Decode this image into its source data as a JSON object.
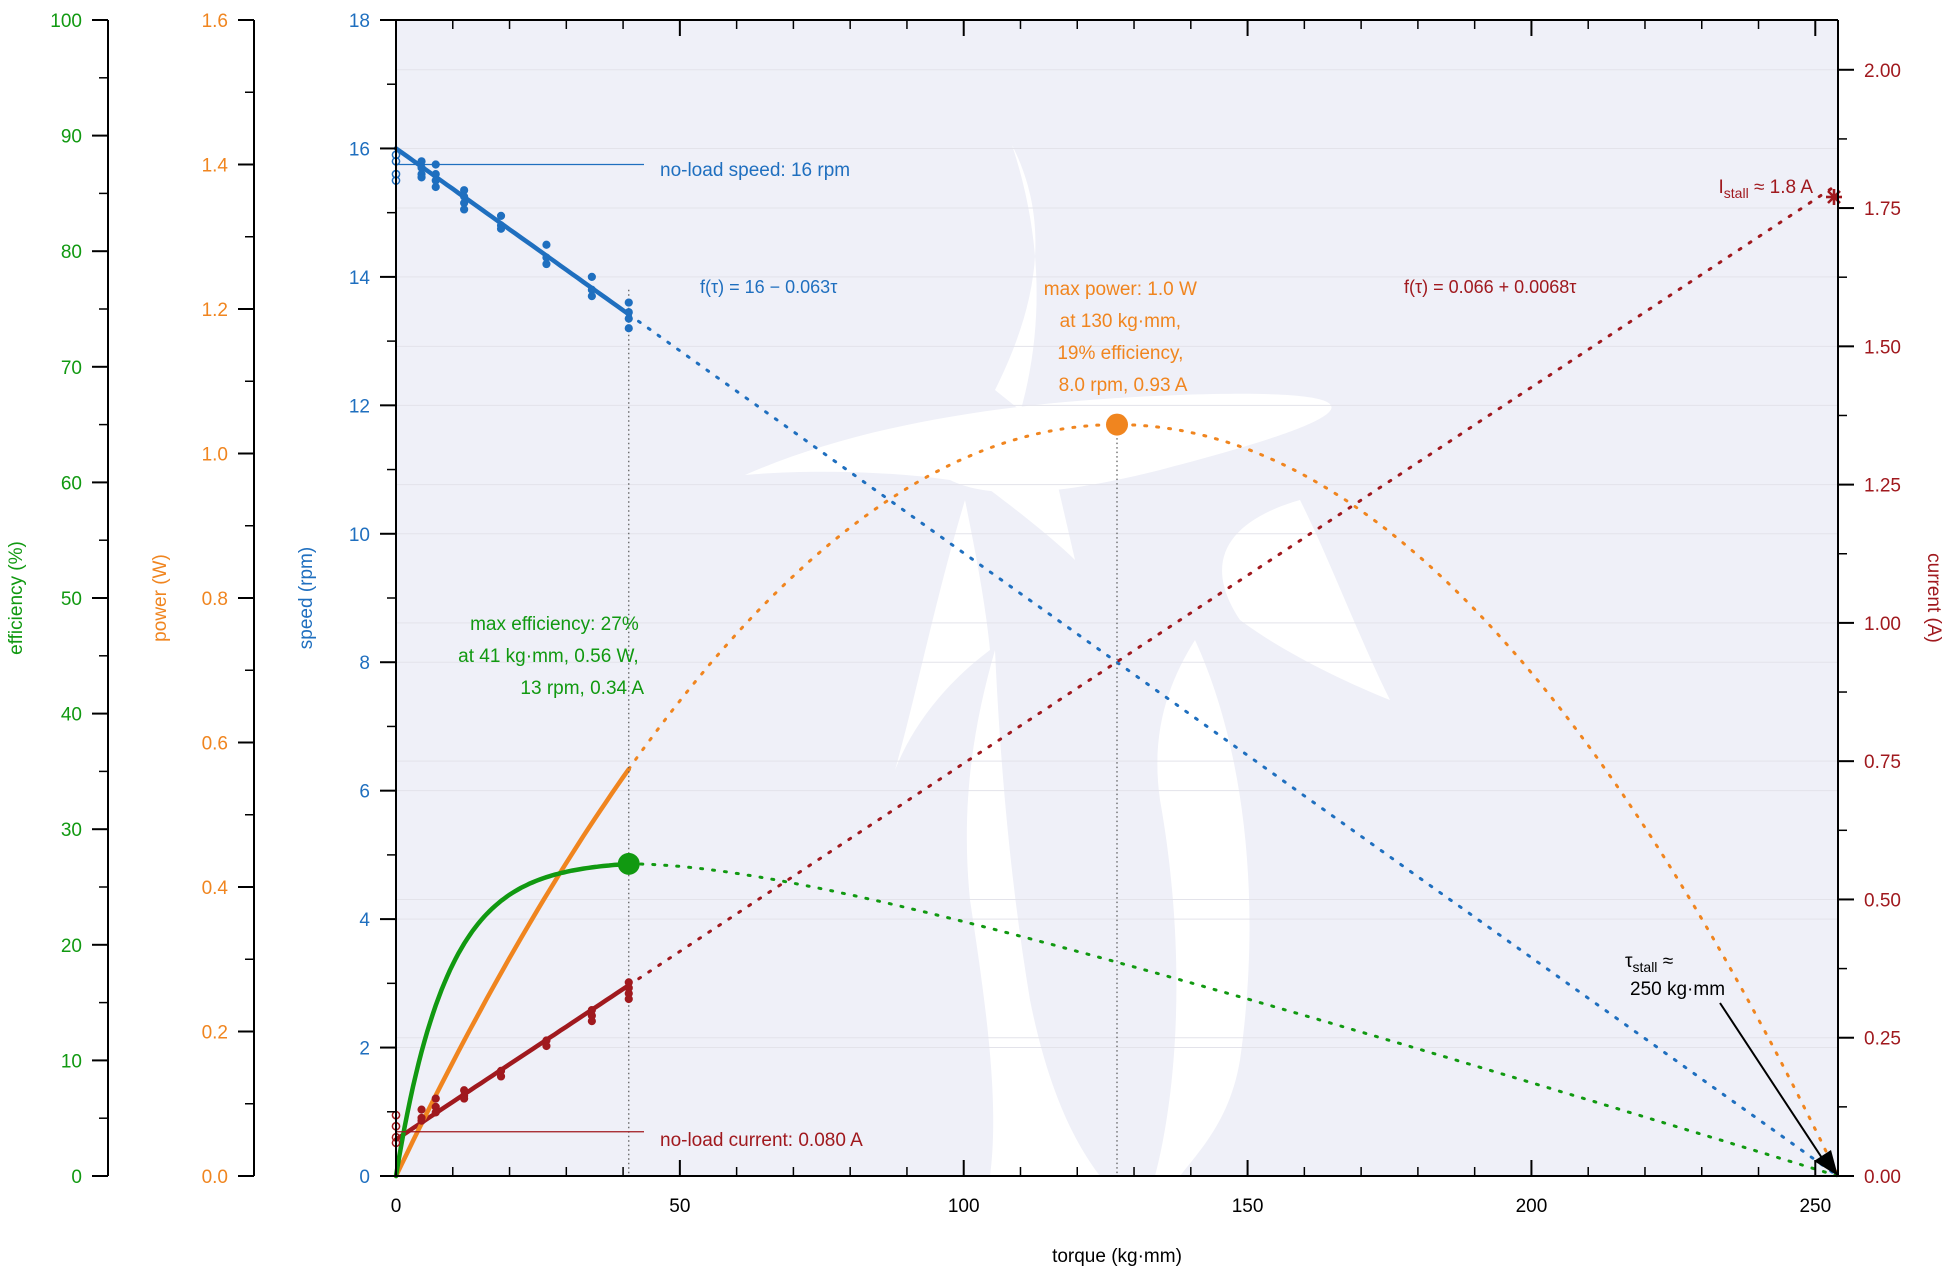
{
  "chart_data": {
    "type": "line",
    "colors": {
      "speed": "#1f6fbf",
      "power": "#f0851f",
      "efficiency": "#119911",
      "current": "#a0191e",
      "stall": "#000000",
      "axis": "#000000",
      "grid": "#e3e3ea",
      "background": "#eff0f8",
      "watermark": "#ffffff"
    },
    "x_axis": {
      "label": "torque (kg·mm)",
      "range": [
        0,
        254
      ],
      "ticks": [
        0,
        50,
        100,
        150,
        200,
        250
      ],
      "tick_labels": [
        "0",
        "50",
        "100",
        "150",
        "200",
        "250"
      ]
    },
    "y_axes": {
      "efficiency": {
        "label": "efficiency (%)",
        "range": [
          0,
          100
        ],
        "ticks": [
          0,
          10,
          20,
          30,
          40,
          50,
          60,
          70,
          80,
          90,
          100
        ],
        "tick_labels": [
          "0",
          "10",
          "20",
          "30",
          "40",
          "50",
          "60",
          "70",
          "80",
          "90",
          "100"
        ]
      },
      "power": {
        "label": "power (W)",
        "range": [
          0,
          1.6
        ],
        "ticks": [
          0,
          0.2,
          0.4,
          0.6,
          0.8,
          1.0,
          1.2,
          1.4,
          1.6
        ],
        "tick_labels": [
          "0.0",
          "0.2",
          "0.4",
          "0.6",
          "0.8",
          "1.0",
          "1.2",
          "1.4",
          "1.6"
        ]
      },
      "speed": {
        "label": "speed (rpm)",
        "range": [
          0,
          18
        ],
        "ticks": [
          0,
          2,
          4,
          6,
          8,
          10,
          12,
          14,
          16,
          18
        ],
        "tick_labels": [
          "0",
          "2",
          "4",
          "6",
          "8",
          "10",
          "12",
          "14",
          "16",
          "18"
        ]
      },
      "current": {
        "label": "current (A)",
        "range": [
          0,
          2.09
        ],
        "ticks": [
          0,
          0.25,
          0.5,
          0.75,
          1.0,
          1.25,
          1.5,
          1.75,
          2.0
        ],
        "tick_labels": [
          "0.00",
          "0.25",
          "0.50",
          "0.75",
          "1.00",
          "1.25",
          "1.50",
          "1.75",
          "2.00"
        ]
      }
    },
    "grid": true,
    "model": {
      "speed_intercept": 16.0,
      "speed_slope": -0.063,
      "current_intercept": 0.066,
      "current_slope": 0.0068,
      "stall_torque": 254,
      "measured_torque_max": 41
    },
    "series": [
      {
        "name": "speed",
        "axis": "speed",
        "points": [
          [
            0,
            15.9
          ],
          [
            0,
            15.8
          ],
          [
            0,
            15.6
          ],
          [
            0,
            15.5
          ],
          [
            4.5,
            15.8
          ],
          [
            4.5,
            15.7
          ],
          [
            4.5,
            15.6
          ],
          [
            4.5,
            15.55
          ],
          [
            7,
            15.75
          ],
          [
            7,
            15.6
          ],
          [
            7,
            15.5
          ],
          [
            7,
            15.4
          ],
          [
            12,
            15.35
          ],
          [
            12,
            15.25
          ],
          [
            12,
            15.15
          ],
          [
            12,
            15.05
          ],
          [
            18.5,
            14.95
          ],
          [
            18.5,
            14.8
          ],
          [
            18.5,
            14.75
          ],
          [
            26.5,
            14.5
          ],
          [
            26.5,
            14.3
          ],
          [
            26.5,
            14.2
          ],
          [
            34.5,
            14.0
          ],
          [
            34.5,
            13.8
          ],
          [
            34.5,
            13.7
          ],
          [
            41,
            13.6
          ],
          [
            41,
            13.45
          ],
          [
            41,
            13.35
          ],
          [
            41,
            13.2
          ]
        ]
      },
      {
        "name": "current",
        "axis": "current",
        "points": [
          [
            0,
            0.11
          ],
          [
            0,
            0.09
          ],
          [
            0,
            0.07
          ],
          [
            0,
            0.06
          ],
          [
            4.5,
            0.12
          ],
          [
            4.5,
            0.105
          ],
          [
            4.5,
            0.1
          ],
          [
            7,
            0.14
          ],
          [
            7,
            0.125
          ],
          [
            7,
            0.115
          ],
          [
            12,
            0.155
          ],
          [
            12,
            0.145
          ],
          [
            12,
            0.14
          ],
          [
            18.5,
            0.19
          ],
          [
            18.5,
            0.18
          ],
          [
            26.5,
            0.245
          ],
          [
            26.5,
            0.235
          ],
          [
            34.5,
            0.3
          ],
          [
            34.5,
            0.29
          ],
          [
            34.5,
            0.28
          ],
          [
            41,
            0.35
          ],
          [
            41,
            0.34
          ],
          [
            41,
            0.33
          ],
          [
            41,
            0.32
          ]
        ]
      }
    ],
    "annotations": {
      "no_load_speed": "no-load speed: 16 rpm",
      "no_load_current": "no-load current: 0.080 A",
      "speed_fit": "f(τ) = 16 − 0.063τ",
      "current_fit": "f(τ) = 0.066 + 0.0068τ",
      "max_power": {
        "lines": [
          "max power: 1.0 W",
          "at 130 kg·mm,",
          "19% efficiency,",
          "8.0 rpm, 0.93 A"
        ],
        "torque": 127,
        "power": 1.04
      },
      "max_efficiency": {
        "lines": [
          "max efficiency: 27%",
          "at 41 kg·mm, 0.56 W,",
          "13 rpm, 0.34 A"
        ],
        "torque": 41,
        "efficiency": 27
      },
      "stall_current": {
        "prefix": "I",
        "subscript": "stall",
        "suffix": " ≈ 1.8 A",
        "value": 1.77
      },
      "stall_torque": {
        "prefix": "τ",
        "subscript": "stall",
        "suffix": " ≈",
        "line2": "250 kg·mm"
      }
    }
  }
}
